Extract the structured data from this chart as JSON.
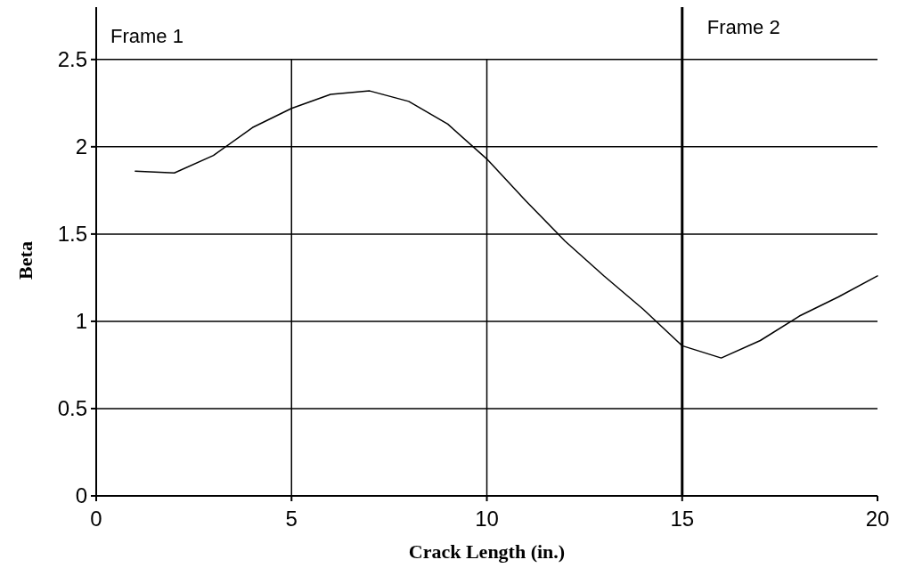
{
  "chart_data": {
    "type": "line",
    "xlabel": "Crack Length (in.)",
    "ylabel": "Beta",
    "x": [
      1,
      2,
      3,
      4,
      5,
      6,
      7,
      8,
      9,
      10,
      11,
      12,
      13,
      14,
      15,
      16,
      17,
      18,
      19,
      20
    ],
    "series": [
      {
        "color": "#000000",
        "values": [
          1.86,
          1.85,
          1.95,
          2.11,
          2.22,
          2.3,
          2.32,
          2.26,
          2.13,
          1.93,
          1.69,
          1.46,
          1.26,
          1.07,
          0.86,
          0.79,
          0.89,
          1.03,
          1.14,
          1.26
        ]
      }
    ],
    "xlim": [
      0,
      20
    ],
    "xticks": [
      0,
      5,
      10,
      15,
      20
    ],
    "ylim": [
      0,
      2.8
    ],
    "yticks": [
      0,
      0.5,
      1,
      1.5,
      2,
      2.5
    ],
    "grid": true,
    "marker": "none",
    "line_style": "solid",
    "ref_lines": [
      {
        "axis": "x",
        "value": 15,
        "label": "Frame 2",
        "color": "#000000"
      }
    ],
    "annotations": [
      "Frame 1"
    ]
  }
}
